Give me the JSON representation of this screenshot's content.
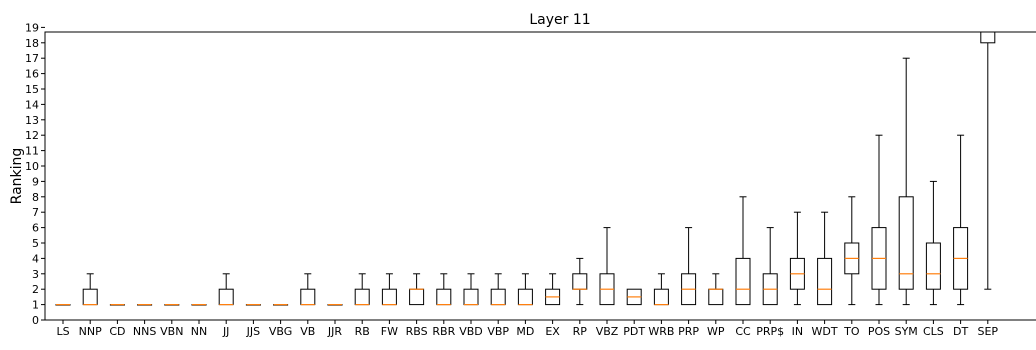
{
  "chart_data": {
    "type": "boxplot",
    "title": "Layer 11",
    "xlabel": "",
    "ylabel": "Ranking",
    "ylim": [
      0,
      20
    ],
    "yticks": [
      0,
      1,
      2,
      3,
      4,
      5,
      6,
      7,
      8,
      9,
      10,
      11,
      12,
      13,
      14,
      15,
      16,
      17,
      18,
      19
    ],
    "grid": false,
    "colors": {
      "box": "#000000",
      "median": "#ff7f0e"
    },
    "categories": [
      "LS",
      "NNP",
      "CD",
      "NNS",
      "VBN",
      "NN",
      "JJ",
      "JJS",
      "VBG",
      "VB",
      "JJR",
      "RB",
      "FW",
      "RBS",
      "RBR",
      "VBD",
      "VBP",
      "MD",
      "EX",
      "RP",
      "VBZ",
      "PDT",
      "WRB",
      "PRP",
      "WP",
      "CC",
      "PRP$",
      "IN",
      "WDT",
      "TO",
      "POS",
      "SYM",
      "CLS",
      "DT",
      "SEP"
    ],
    "boxes": [
      {
        "label": "LS",
        "whislo": 1,
        "q1": 1,
        "median": 1,
        "q3": 1,
        "whishi": 1
      },
      {
        "label": "NNP",
        "whislo": 1,
        "q1": 1,
        "median": 1,
        "q3": 2,
        "whishi": 3
      },
      {
        "label": "CD",
        "whislo": 1,
        "q1": 1,
        "median": 1,
        "q3": 1,
        "whishi": 1
      },
      {
        "label": "NNS",
        "whislo": 1,
        "q1": 1,
        "median": 1,
        "q3": 1,
        "whishi": 1
      },
      {
        "label": "VBN",
        "whislo": 1,
        "q1": 1,
        "median": 1,
        "q3": 1,
        "whishi": 1
      },
      {
        "label": "NN",
        "whislo": 1,
        "q1": 1,
        "median": 1,
        "q3": 1,
        "whishi": 1
      },
      {
        "label": "JJ",
        "whislo": 1,
        "q1": 1,
        "median": 1,
        "q3": 2,
        "whishi": 3
      },
      {
        "label": "JJS",
        "whislo": 1,
        "q1": 1,
        "median": 1,
        "q3": 1,
        "whishi": 1
      },
      {
        "label": "VBG",
        "whislo": 1,
        "q1": 1,
        "median": 1,
        "q3": 1,
        "whishi": 1
      },
      {
        "label": "VB",
        "whislo": 1,
        "q1": 1,
        "median": 1,
        "q3": 2,
        "whishi": 3
      },
      {
        "label": "JJR",
        "whislo": 1,
        "q1": 1,
        "median": 1,
        "q3": 1,
        "whishi": 1
      },
      {
        "label": "RB",
        "whislo": 1,
        "q1": 1,
        "median": 1,
        "q3": 2,
        "whishi": 3
      },
      {
        "label": "FW",
        "whislo": 1,
        "q1": 1,
        "median": 1,
        "q3": 2,
        "whishi": 3
      },
      {
        "label": "RBS",
        "whislo": 1,
        "q1": 1,
        "median": 2,
        "q3": 2,
        "whishi": 3
      },
      {
        "label": "RBR",
        "whislo": 1,
        "q1": 1,
        "median": 1,
        "q3": 2,
        "whishi": 3
      },
      {
        "label": "VBD",
        "whislo": 1,
        "q1": 1,
        "median": 1,
        "q3": 2,
        "whishi": 3
      },
      {
        "label": "VBP",
        "whislo": 1,
        "q1": 1,
        "median": 1,
        "q3": 2,
        "whishi": 3
      },
      {
        "label": "MD",
        "whislo": 1,
        "q1": 1,
        "median": 1,
        "q3": 2,
        "whishi": 3
      },
      {
        "label": "EX",
        "whislo": 1,
        "q1": 1,
        "median": 1.5,
        "q3": 2,
        "whishi": 3
      },
      {
        "label": "RP",
        "whislo": 1,
        "q1": 2,
        "median": 2,
        "q3": 3,
        "whishi": 4
      },
      {
        "label": "VBZ",
        "whislo": 1,
        "q1": 1,
        "median": 2,
        "q3": 3,
        "whishi": 6
      },
      {
        "label": "PDT",
        "whislo": 1,
        "q1": 1,
        "median": 1.5,
        "q3": 2,
        "whishi": 2
      },
      {
        "label": "WRB",
        "whislo": 1,
        "q1": 1,
        "median": 1,
        "q3": 2,
        "whishi": 3
      },
      {
        "label": "PRP",
        "whislo": 1,
        "q1": 1,
        "median": 2,
        "q3": 3,
        "whishi": 6
      },
      {
        "label": "WP",
        "whislo": 1,
        "q1": 1,
        "median": 2,
        "q3": 2,
        "whishi": 3
      },
      {
        "label": "CC",
        "whislo": 1,
        "q1": 1,
        "median": 2,
        "q3": 4,
        "whishi": 8
      },
      {
        "label": "PRP$",
        "whislo": 1,
        "q1": 1,
        "median": 2,
        "q3": 3,
        "whishi": 6
      },
      {
        "label": "IN",
        "whislo": 1,
        "q1": 2,
        "median": 3,
        "q3": 4,
        "whishi": 7
      },
      {
        "label": "WDT",
        "whislo": 1,
        "q1": 1,
        "median": 2,
        "q3": 4,
        "whishi": 7
      },
      {
        "label": "TO",
        "whislo": 1,
        "q1": 3,
        "median": 4,
        "q3": 5,
        "whishi": 8
      },
      {
        "label": "POS",
        "whislo": 1,
        "q1": 2,
        "median": 4,
        "q3": 6,
        "whishi": 12
      },
      {
        "label": "SYM",
        "whislo": 1,
        "q1": 2,
        "median": 3,
        "q3": 8,
        "whishi": 17
      },
      {
        "label": "CLS",
        "whislo": 1,
        "q1": 2,
        "median": 3,
        "q3": 5,
        "whishi": 9
      },
      {
        "label": "DT",
        "whislo": 1,
        "q1": 2,
        "median": 4,
        "q3": 6,
        "whishi": 12
      },
      {
        "label": "SEP",
        "whislo": 2,
        "q1": 18,
        "median": 21,
        "q3": 21,
        "whishi": 21
      }
    ]
  }
}
